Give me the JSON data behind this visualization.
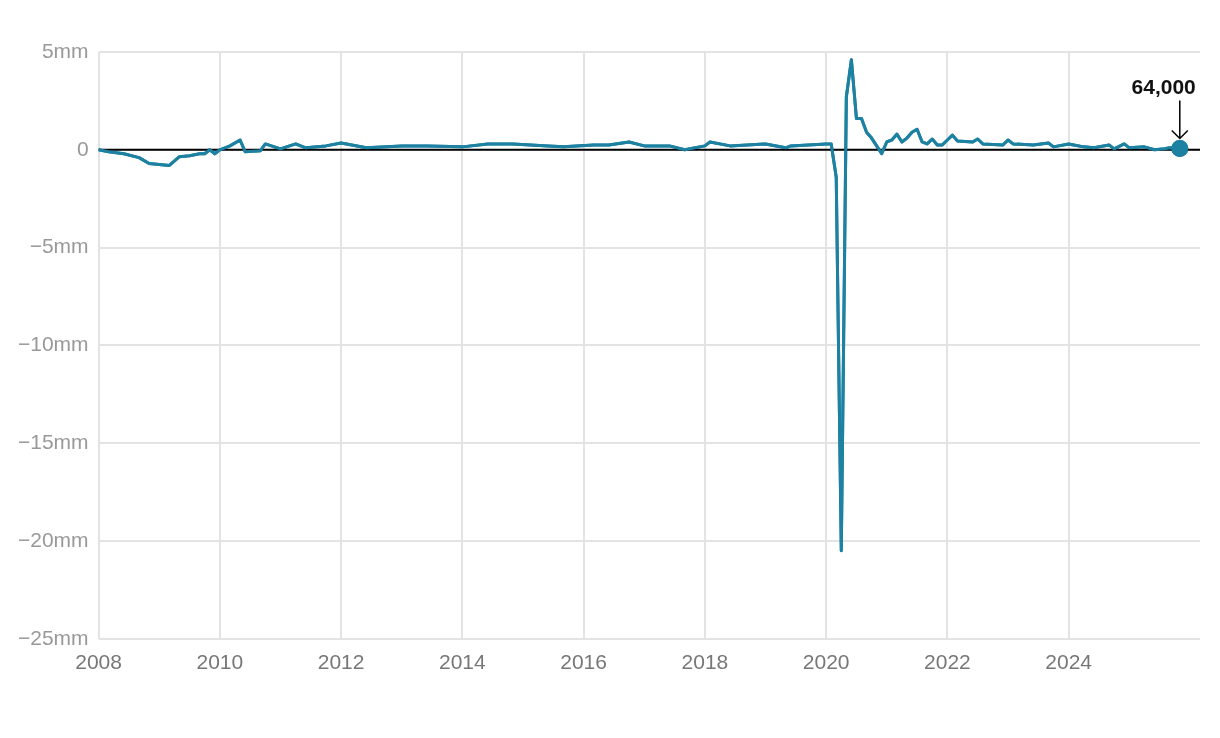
{
  "chart_data": {
    "type": "line",
    "x": [
      "2008-01",
      "2008-03",
      "2008-06",
      "2008-09",
      "2008-11",
      "2009-01",
      "2009-03",
      "2009-05",
      "2009-07",
      "2009-09",
      "2009-10",
      "2009-11",
      "2009-12",
      "2010-01",
      "2010-03",
      "2010-05",
      "2010-06",
      "2010-09",
      "2010-10",
      "2011-01",
      "2011-04",
      "2011-06",
      "2011-10",
      "2012-01",
      "2012-06",
      "2013-01",
      "2013-06",
      "2014-01",
      "2014-06",
      "2014-11",
      "2015-06",
      "2015-09",
      "2016-03",
      "2016-06",
      "2016-10",
      "2017-01",
      "2017-06",
      "2017-09",
      "2018-01",
      "2018-02",
      "2018-06",
      "2019-01",
      "2019-05",
      "2019-06",
      "2020-01",
      "2020-02",
      "2020-03",
      "2020-04",
      "2020-05",
      "2020-06",
      "2020-07",
      "2020-08",
      "2020-09",
      "2020-10",
      "2020-11",
      "2020-12",
      "2021-01",
      "2021-02",
      "2021-03",
      "2021-04",
      "2021-05",
      "2021-06",
      "2021-07",
      "2021-08",
      "2021-09",
      "2021-10",
      "2021-11",
      "2021-12",
      "2022-01",
      "2022-02",
      "2022-03",
      "2022-06",
      "2022-07",
      "2022-08",
      "2022-12",
      "2023-01",
      "2023-02",
      "2023-06",
      "2023-09",
      "2023-10",
      "2024-01",
      "2024-02",
      "2024-04",
      "2024-06",
      "2024-09",
      "2024-10",
      "2024-12",
      "2025-01",
      "2025-04",
      "2025-06",
      "2025-08",
      "2025-09",
      "2025-11"
    ],
    "series": [
      {
        "color": "#1d81a2",
        "values": [
          0.0,
          -0.1,
          -0.2,
          -0.4,
          -0.7,
          -0.75,
          -0.8,
          -0.35,
          -0.3,
          -0.2,
          -0.2,
          0.0,
          -0.2,
          0.0,
          0.2,
          0.5,
          -0.1,
          -0.05,
          0.3,
          0.05,
          0.3,
          0.1,
          0.2,
          0.35,
          0.1,
          0.2,
          0.2,
          0.15,
          0.3,
          0.3,
          0.2,
          0.15,
          0.25,
          0.25,
          0.4,
          0.2,
          0.2,
          0.0,
          0.2,
          0.4,
          0.2,
          0.3,
          0.1,
          0.2,
          0.3,
          0.3,
          -1.4,
          -20.5,
          2.7,
          4.6,
          1.6,
          1.6,
          0.9,
          0.6,
          0.2,
          -0.2,
          0.4,
          0.5,
          0.8,
          0.4,
          0.6,
          0.9,
          1.05,
          0.4,
          0.3,
          0.55,
          0.25,
          0.25,
          0.5,
          0.75,
          0.45,
          0.4,
          0.55,
          0.3,
          0.25,
          0.5,
          0.3,
          0.25,
          0.35,
          0.15,
          0.3,
          0.25,
          0.15,
          0.1,
          0.25,
          0.05,
          0.3,
          0.1,
          0.15,
          0.0,
          0.05,
          0.1,
          0.064
        ]
      }
    ],
    "xlim": [
      "2008-01",
      "2026-03"
    ],
    "xticks": [
      {
        "value": "2008",
        "label": "2008"
      },
      {
        "value": "2010",
        "label": "2010"
      },
      {
        "value": "2012",
        "label": "2012"
      },
      {
        "value": "2014",
        "label": "2014"
      },
      {
        "value": "2016",
        "label": "2016"
      },
      {
        "value": "2018",
        "label": "2018"
      },
      {
        "value": "2020",
        "label": "2020"
      },
      {
        "value": "2022",
        "label": "2022"
      },
      {
        "value": "2024",
        "label": "2024"
      }
    ],
    "ylim": [
      -25,
      5
    ],
    "yticks": [
      {
        "value": 5,
        "label": "5mm"
      },
      0,
      {
        "value": -5,
        "label": "−5mm"
      },
      {
        "value": -10,
        "label": "−10mm"
      },
      {
        "value": -15,
        "label": "−15mm"
      },
      {
        "value": -20,
        "label": "−20mm"
      },
      {
        "value": -25,
        "label": "−25mm"
      }
    ],
    "ref_lines": [
      {
        "axis": "y",
        "value": 0,
        "color": "#000000"
      }
    ],
    "annotations": [
      {
        "text": "64,000",
        "x": "2025-11",
        "y": 0.064
      }
    ],
    "grid": true,
    "legend": false,
    "marker": "none"
  }
}
